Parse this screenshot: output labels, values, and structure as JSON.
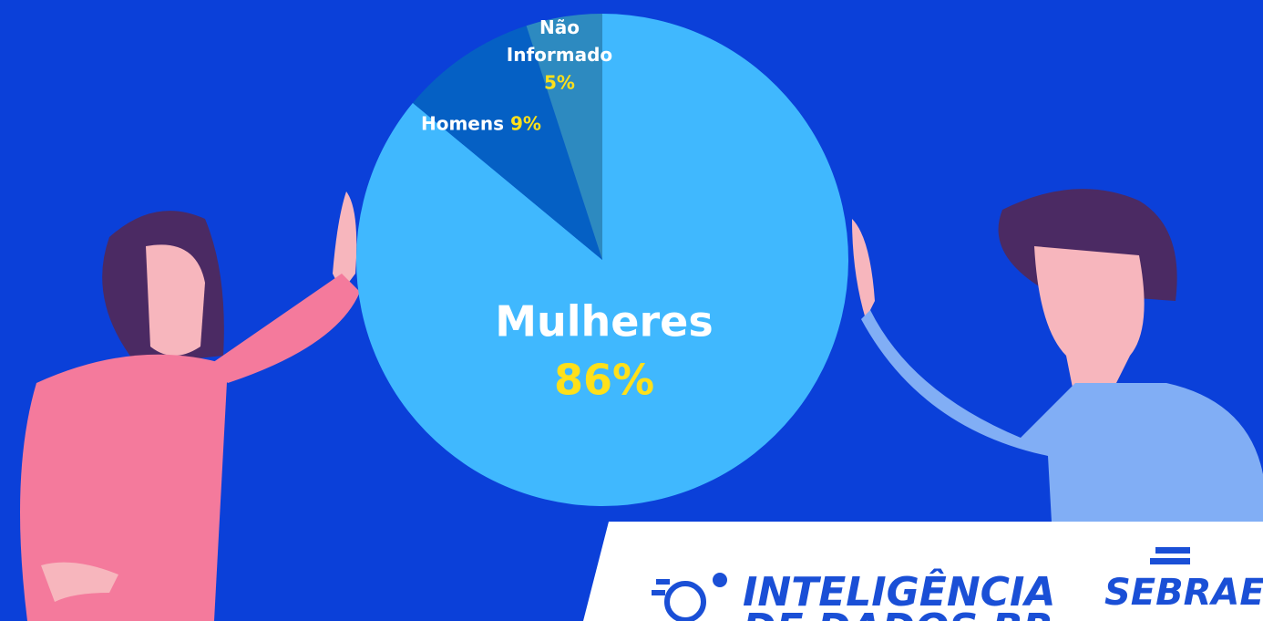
{
  "chart_data": {
    "type": "pie",
    "categories": [
      "Mulheres",
      "Homens",
      "Não Informado"
    ],
    "values": [
      86,
      9,
      5
    ],
    "value_labels": [
      "86%",
      "9%",
      "5%"
    ],
    "colors": [
      "#40b8fe",
      "#0560c4",
      "#2d8ac0"
    ]
  },
  "footer": {
    "brand": "INTELIGÊNCIA",
    "brand_line2": "DE DADOS BR",
    "partner": "SEBRAE"
  }
}
